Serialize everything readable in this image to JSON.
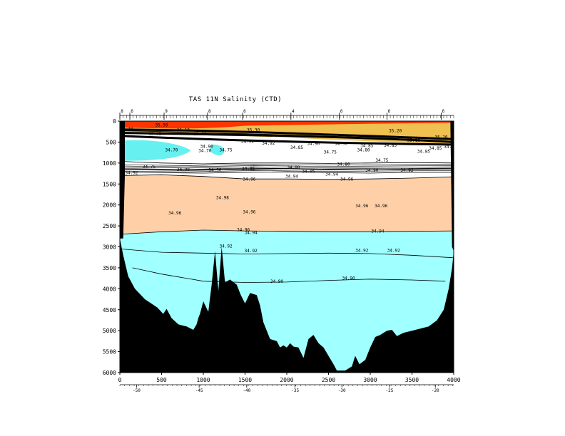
{
  "chart_data": {
    "type": "contour-section",
    "title": "TAS 11N Salinity (CTD)",
    "xlabel": "",
    "ylabel": "",
    "x_range": [
      0,
      4000
    ],
    "y_range": [
      0,
      6000
    ],
    "y_inverted": true,
    "x_ticks": [
      0,
      500,
      1000,
      1500,
      2000,
      2500,
      3000,
      3500,
      4000
    ],
    "y_ticks": [
      0,
      500,
      1000,
      1500,
      2000,
      2500,
      3000,
      3500,
      4000,
      4500,
      5000,
      5500,
      6000
    ],
    "x_tick_labels": [
      "0",
      "500",
      "1000",
      "1500",
      "2000",
      "2500",
      "3000",
      "3500",
      "4000"
    ],
    "y_tick_labels": [
      "0",
      "500",
      "1000",
      "1500",
      "2000",
      "2500",
      "3000",
      "3500",
      "4000",
      "4500",
      "5000",
      "5500",
      "6000"
    ],
    "longitude_ticks": [
      {
        "x": 200,
        "label": "-50"
      },
      {
        "x": 950,
        "label": "-45"
      },
      {
        "x": 1520,
        "label": "-40"
      },
      {
        "x": 2100,
        "label": "-35"
      },
      {
        "x": 2660,
        "label": "-30"
      },
      {
        "x": 3230,
        "label": "-25"
      },
      {
        "x": 3780,
        "label": "-20"
      }
    ],
    "station_ticks": [
      {
        "x": 0,
        "label": "8"
      },
      {
        "x": 120,
        "label": "6"
      },
      {
        "x": 530,
        "label": "9"
      },
      {
        "x": 1050,
        "label": "8"
      },
      {
        "x": 1470,
        "label": "6"
      },
      {
        "x": 2050,
        "label": "4"
      },
      {
        "x": 2630,
        "label": "6"
      },
      {
        "x": 3200,
        "label": "6"
      },
      {
        "x": 3850,
        "label": "6"
      }
    ],
    "fill_bands": [
      {
        "range": ">35.3",
        "color": "#ff3300"
      },
      {
        "range": "35.0-35.3",
        "color": "#f0c050"
      },
      {
        "range": "34.85-35.0",
        "color": "#ffffff"
      },
      {
        "range": "34.92-34.96 (deep max)",
        "color": "#ffd0a8"
      },
      {
        "range": "34.90-34.92",
        "color": "#a0ffff"
      },
      {
        "range": "<34.7",
        "color": "#66f0f0"
      }
    ],
    "contours": [
      {
        "value": "34.96",
        "depth_profile": [
          [
            0,
            1300
          ],
          [
            500,
            1280
          ],
          [
            1000,
            1320
          ],
          [
            1500,
            1380
          ],
          [
            2000,
            1380
          ],
          [
            2500,
            1390
          ],
          [
            3000,
            1380
          ],
          [
            3500,
            1360
          ],
          [
            4000,
            1330
          ]
        ]
      },
      {
        "value": "34.96",
        "depth_profile": [
          [
            0,
            2700
          ],
          [
            500,
            2640
          ],
          [
            1000,
            2600
          ],
          [
            1500,
            2620
          ],
          [
            2000,
            2630
          ],
          [
            2500,
            2640
          ],
          [
            3000,
            2640
          ],
          [
            3500,
            2630
          ],
          [
            4000,
            2620
          ]
        ]
      },
      {
        "value": "34.92",
        "depth_profile": [
          [
            0,
            3050
          ],
          [
            500,
            3130
          ],
          [
            1000,
            3150
          ],
          [
            1500,
            3170
          ],
          [
            2000,
            3160
          ],
          [
            2500,
            3150
          ],
          [
            3000,
            3160
          ],
          [
            3500,
            3200
          ],
          [
            4000,
            3260
          ]
        ]
      },
      {
        "value": "34.90",
        "depth_profile": [
          [
            150,
            3500
          ],
          [
            500,
            3650
          ],
          [
            1000,
            3820
          ],
          [
            1500,
            3850
          ],
          [
            2000,
            3840
          ],
          [
            2500,
            3800
          ],
          [
            3000,
            3770
          ],
          [
            3500,
            3790
          ],
          [
            3900,
            3820
          ]
        ]
      },
      {
        "value": "34.80",
        "depth_profile": [
          [
            0,
            960
          ],
          [
            500,
            1000
          ],
          [
            1000,
            1020
          ],
          [
            1500,
            1000
          ],
          [
            2000,
            1000
          ],
          [
            2500,
            1010
          ],
          [
            3000,
            1000
          ],
          [
            3500,
            990
          ],
          [
            4000,
            1000
          ]
        ]
      },
      {
        "value": "34.85",
        "depth_profile": [
          [
            0,
            1140
          ],
          [
            500,
            1150
          ],
          [
            1000,
            1160
          ],
          [
            1500,
            1140
          ],
          [
            2000,
            1130
          ],
          [
            2500,
            1150
          ],
          [
            3000,
            1160
          ],
          [
            3500,
            1140
          ],
          [
            4000,
            1130
          ]
        ]
      },
      {
        "value": "34.90",
        "depth_profile": [
          [
            0,
            1210
          ],
          [
            500,
            1230
          ],
          [
            1000,
            1240
          ],
          [
            1500,
            1220
          ],
          [
            2000,
            1210
          ],
          [
            2500,
            1230
          ],
          [
            3000,
            1240
          ],
          [
            3500,
            1220
          ],
          [
            4000,
            1220
          ]
        ]
      },
      {
        "value": "35.10",
        "depth_profile": [
          [
            0,
            230
          ],
          [
            500,
            250
          ],
          [
            1000,
            280
          ],
          [
            1500,
            300
          ],
          [
            2000,
            330
          ],
          [
            2500,
            380
          ],
          [
            3000,
            420
          ],
          [
            3500,
            460
          ],
          [
            4000,
            500
          ]
        ]
      }
    ],
    "contour_labels": [
      {
        "x": 500,
        "y": 130,
        "label": "35.50"
      },
      {
        "x": 80,
        "y": 220,
        "label": "35.10"
      },
      {
        "x": 420,
        "y": 340,
        "label": "35.05"
      },
      {
        "x": 760,
        "y": 250,
        "label": "35.10"
      },
      {
        "x": 960,
        "y": 340,
        "label": "35.00"
      },
      {
        "x": 1600,
        "y": 250,
        "label": "35.30"
      },
      {
        "x": 2600,
        "y": 390,
        "label": "35.10"
      },
      {
        "x": 3300,
        "y": 260,
        "label": "35.20"
      },
      {
        "x": 3850,
        "y": 420,
        "label": "35.20"
      },
      {
        "x": 3520,
        "y": 490,
        "label": "35.10"
      },
      {
        "x": 1040,
        "y": 640,
        "label": "34.90"
      },
      {
        "x": 1530,
        "y": 520,
        "label": "34.92"
      },
      {
        "x": 1780,
        "y": 560,
        "label": "34.92"
      },
      {
        "x": 2120,
        "y": 660,
        "label": "34.85"
      },
      {
        "x": 2320,
        "y": 570,
        "label": "34.90"
      },
      {
        "x": 2650,
        "y": 570,
        "label": "34.90"
      },
      {
        "x": 2960,
        "y": 620,
        "label": "34.85"
      },
      {
        "x": 3240,
        "y": 610,
        "label": "34.85"
      },
      {
        "x": 3780,
        "y": 680,
        "label": "34.85"
      },
      {
        "x": 3960,
        "y": 650,
        "label": "34.90"
      },
      {
        "x": 620,
        "y": 720,
        "label": "34.70"
      },
      {
        "x": 1020,
        "y": 740,
        "label": "34.70"
      },
      {
        "x": 1270,
        "y": 720,
        "label": "34.75"
      },
      {
        "x": 2520,
        "y": 770,
        "label": "34.75"
      },
      {
        "x": 2920,
        "y": 720,
        "label": "34.80"
      },
      {
        "x": 3640,
        "y": 760,
        "label": "34.85"
      },
      {
        "x": 350,
        "y": 1120,
        "label": "34.75"
      },
      {
        "x": 760,
        "y": 1190,
        "label": "34.90"
      },
      {
        "x": 140,
        "y": 1270,
        "label": "34.92"
      },
      {
        "x": 1140,
        "y": 1200,
        "label": "34.90"
      },
      {
        "x": 1540,
        "y": 1170,
        "label": "34.85"
      },
      {
        "x": 2080,
        "y": 1140,
        "label": "34.80"
      },
      {
        "x": 2680,
        "y": 1060,
        "label": "34.80"
      },
      {
        "x": 3140,
        "y": 970,
        "label": "34.75"
      },
      {
        "x": 2260,
        "y": 1230,
        "label": "34.85"
      },
      {
        "x": 3020,
        "y": 1210,
        "label": "34.90"
      },
      {
        "x": 3440,
        "y": 1210,
        "label": "34.92"
      },
      {
        "x": 2540,
        "y": 1300,
        "label": "34.94"
      },
      {
        "x": 2060,
        "y": 1350,
        "label": "34.94"
      },
      {
        "x": 1550,
        "y": 1420,
        "label": "34.96"
      },
      {
        "x": 2720,
        "y": 1420,
        "label": "34.96"
      },
      {
        "x": 1230,
        "y": 1860,
        "label": "34.98"
      },
      {
        "x": 2900,
        "y": 2060,
        "label": "34.96"
      },
      {
        "x": 3130,
        "y": 2060,
        "label": "34.96"
      },
      {
        "x": 660,
        "y": 2230,
        "label": "34.96"
      },
      {
        "x": 1550,
        "y": 2200,
        "label": "34.96"
      },
      {
        "x": 1480,
        "y": 2630,
        "label": "34.96"
      },
      {
        "x": 1570,
        "y": 2690,
        "label": "34.94"
      },
      {
        "x": 3090,
        "y": 2660,
        "label": "34.94"
      },
      {
        "x": 1270,
        "y": 3020,
        "label": "34.92"
      },
      {
        "x": 1570,
        "y": 3130,
        "label": "34.92"
      },
      {
        "x": 2900,
        "y": 3120,
        "label": "34.92"
      },
      {
        "x": 3280,
        "y": 3120,
        "label": "34.92"
      },
      {
        "x": 1880,
        "y": 3860,
        "label": "34.90"
      },
      {
        "x": 2740,
        "y": 3780,
        "label": "34.90"
      }
    ],
    "bathymetry": [
      [
        0,
        0
      ],
      [
        0,
        2800
      ],
      [
        40,
        3200
      ],
      [
        100,
        3700
      ],
      [
        180,
        4000
      ],
      [
        300,
        4250
      ],
      [
        450,
        4450
      ],
      [
        520,
        4600
      ],
      [
        560,
        4480
      ],
      [
        620,
        4700
      ],
      [
        700,
        4850
      ],
      [
        800,
        4900
      ],
      [
        880,
        4980
      ],
      [
        920,
        4850
      ],
      [
        940,
        4700
      ],
      [
        960,
        4600
      ],
      [
        1000,
        4300
      ],
      [
        1060,
        4550
      ],
      [
        1100,
        3900
      ],
      [
        1140,
        3100
      ],
      [
        1180,
        4050
      ],
      [
        1220,
        3000
      ],
      [
        1260,
        3850
      ],
      [
        1320,
        3780
      ],
      [
        1400,
        3900
      ],
      [
        1450,
        4150
      ],
      [
        1500,
        4350
      ],
      [
        1560,
        4100
      ],
      [
        1640,
        4150
      ],
      [
        1680,
        4400
      ],
      [
        1720,
        4800
      ],
      [
        1800,
        5200
      ],
      [
        1880,
        5250
      ],
      [
        1920,
        5400
      ],
      [
        1960,
        5350
      ],
      [
        2000,
        5400
      ],
      [
        2040,
        5300
      ],
      [
        2080,
        5380
      ],
      [
        2140,
        5400
      ],
      [
        2200,
        5650
      ],
      [
        2260,
        5200
      ],
      [
        2320,
        5100
      ],
      [
        2380,
        5300
      ],
      [
        2440,
        5400
      ],
      [
        2500,
        5600
      ],
      [
        2560,
        5800
      ],
      [
        2600,
        5950
      ],
      [
        2700,
        5950
      ],
      [
        2780,
        5850
      ],
      [
        2820,
        5600
      ],
      [
        2870,
        5800
      ],
      [
        2940,
        5700
      ],
      [
        3000,
        5400
      ],
      [
        3060,
        5150
      ],
      [
        3120,
        5100
      ],
      [
        3200,
        5000
      ],
      [
        3260,
        4980
      ],
      [
        3320,
        5130
      ],
      [
        3400,
        5050
      ],
      [
        3500,
        5000
      ],
      [
        3600,
        4950
      ],
      [
        3700,
        4900
      ],
      [
        3800,
        4750
      ],
      [
        3880,
        4500
      ],
      [
        3940,
        4000
      ],
      [
        3980,
        3500
      ],
      [
        4000,
        3100
      ],
      [
        4000,
        0
      ]
    ]
  }
}
